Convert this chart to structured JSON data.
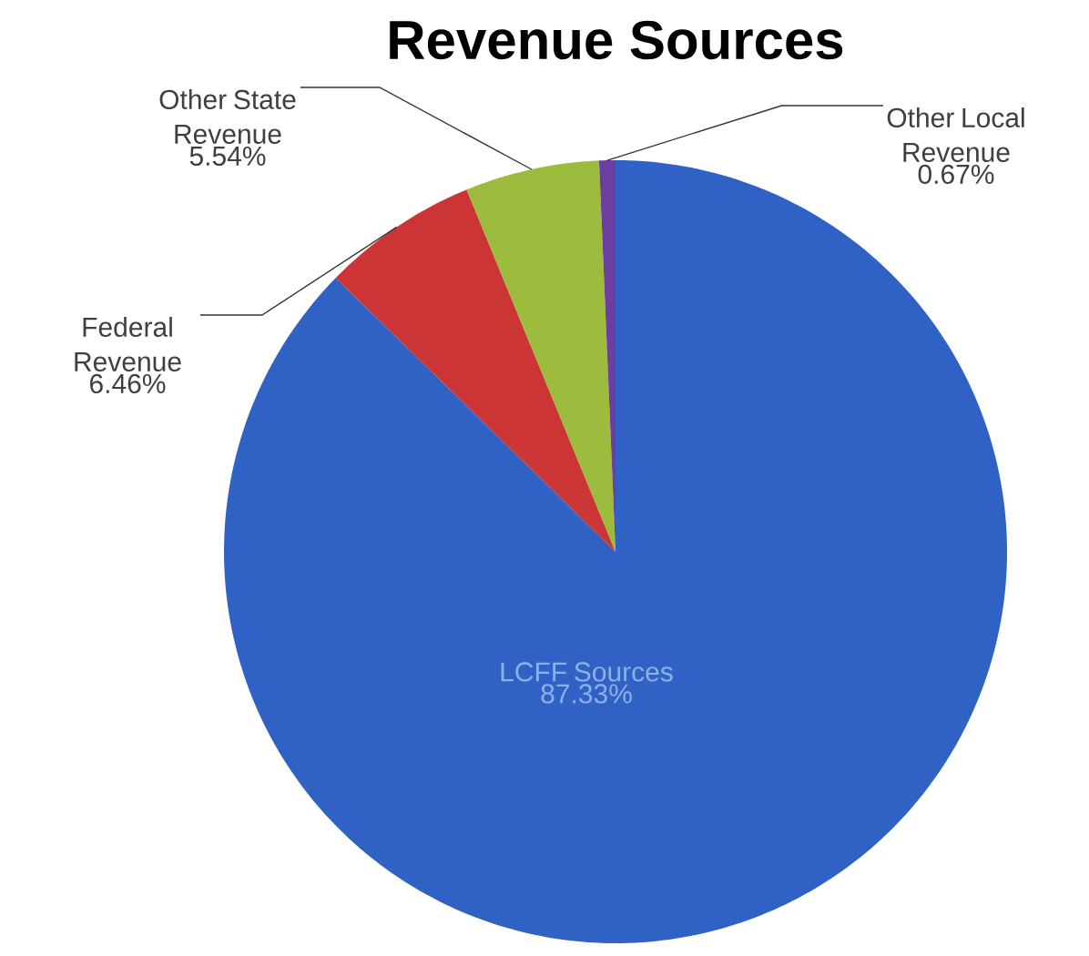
{
  "chart_data": {
    "type": "pie",
    "title": "Revenue Sources",
    "categories": [
      "LCFF Sources",
      "Federal Revenue",
      "Other State Revenue",
      "Other Local Revenue"
    ],
    "values": [
      87.33,
      6.46,
      5.54,
      0.67
    ],
    "value_labels": [
      "87.33%",
      "6.46%",
      "5.54%",
      "0.67%"
    ],
    "colors": [
      "#2f62c4",
      "#cc3535",
      "#9dbb3d",
      "#6b3fa0"
    ]
  }
}
